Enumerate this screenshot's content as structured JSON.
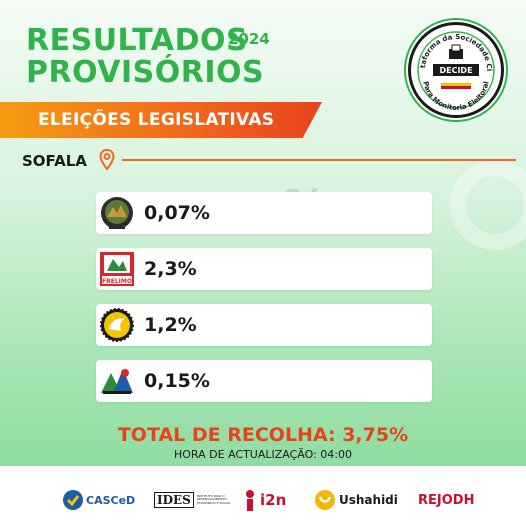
{
  "header": {
    "title_line1": "RESULTADOS",
    "title_line2": "PROVISÓRIOS",
    "year": "2024"
  },
  "seal": {
    "text_top": "Plataforma da Sociedade Civil",
    "text_center": "DECIDE",
    "text_bottom": "Para Monitoria Eleitoral"
  },
  "banner": {
    "label": "ELEIÇÕES LEGISLATIVAS"
  },
  "region": {
    "name": "SOFALA",
    "icon": "location-pin-icon"
  },
  "parties": [
    {
      "logo": "mdm-logo",
      "logo_text": "MDM",
      "percent": "0,07%"
    },
    {
      "logo": "frelimo-logo",
      "logo_text": "FRELIMO",
      "percent": "2,3%"
    },
    {
      "logo": "renamo-logo",
      "logo_text": "",
      "percent": "1,2%"
    },
    {
      "logo": "podemos-logo",
      "logo_text": "",
      "percent": "0,15%"
    }
  ],
  "summary": {
    "total_label": "TOTAL DE RECOLHA: 3,75%",
    "update_label": "HORA DE ACTUALIZAÇÃO: 04:00"
  },
  "sponsors": [
    {
      "name": "CASCeD",
      "color": "#1f5ca8"
    },
    {
      "name": "IDES",
      "subtitle": "INSTITUTO PARA O DESENVOLVIMENTO ECONÓMICO E SOCIAL",
      "color": "#1a1a1a"
    },
    {
      "name": "i2n",
      "color": "#c8102e"
    },
    {
      "name": "Ushahidi",
      "color": "#1a1a1a"
    },
    {
      "name": "REJODH",
      "color": "#c8102e"
    }
  ],
  "colors": {
    "title_green": "#2fb34a",
    "accent_orange": "#f26a1b",
    "total_red": "#e8431e"
  }
}
